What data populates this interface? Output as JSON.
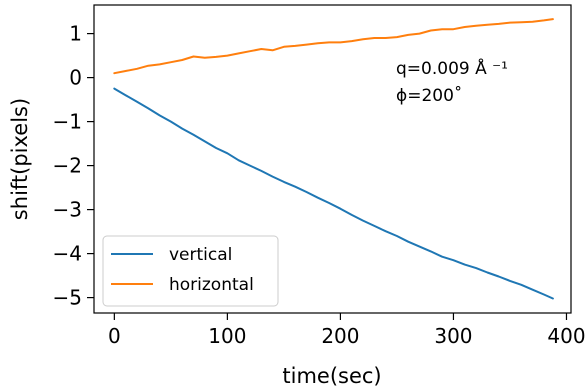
{
  "chart_data": {
    "type": "line",
    "xlabel": "time(sec)",
    "ylabel": "shift(pixels)",
    "xlim": [
      -18,
      404
    ],
    "ylim": [
      -5.35,
      1.65
    ],
    "xticks": [
      0,
      100,
      200,
      300,
      400
    ],
    "xtick_labels": [
      "0",
      "100",
      "200",
      "300",
      "400"
    ],
    "yticks": [
      1,
      0,
      -1,
      -2,
      -3,
      -4,
      -5
    ],
    "ytick_labels": [
      "1",
      "0",
      "−1",
      "−2",
      "−3",
      "−4",
      "−5"
    ],
    "grid": false,
    "legend_position": "lower-left",
    "annotation": {
      "line1": "q=0.009 Å ⁻¹",
      "line2": "ϕ=200˚"
    },
    "series": [
      {
        "name": "vertical",
        "color": "#1f77b4",
        "x": [
          0,
          10,
          20,
          30,
          40,
          50,
          60,
          70,
          80,
          90,
          100,
          110,
          120,
          130,
          140,
          150,
          160,
          170,
          180,
          190,
          200,
          210,
          220,
          230,
          240,
          250,
          260,
          270,
          280,
          290,
          300,
          310,
          320,
          330,
          340,
          350,
          360,
          370,
          380,
          388
        ],
        "y": [
          -0.25,
          -0.4,
          -0.55,
          -0.7,
          -0.86,
          -1.0,
          -1.16,
          -1.3,
          -1.45,
          -1.6,
          -1.72,
          -1.88,
          -2.0,
          -2.12,
          -2.25,
          -2.37,
          -2.48,
          -2.6,
          -2.73,
          -2.85,
          -2.98,
          -3.12,
          -3.25,
          -3.37,
          -3.49,
          -3.6,
          -3.73,
          -3.84,
          -3.95,
          -4.07,
          -4.15,
          -4.25,
          -4.33,
          -4.43,
          -4.52,
          -4.62,
          -4.71,
          -4.82,
          -4.93,
          -5.02
        ]
      },
      {
        "name": "horizontal",
        "color": "#ff7f0e",
        "x": [
          0,
          10,
          20,
          30,
          40,
          50,
          60,
          70,
          80,
          90,
          100,
          110,
          120,
          130,
          140,
          150,
          160,
          170,
          180,
          190,
          200,
          210,
          220,
          230,
          240,
          250,
          260,
          270,
          280,
          290,
          300,
          310,
          320,
          330,
          340,
          350,
          360,
          370,
          380,
          388
        ],
        "y": [
          0.1,
          0.15,
          0.2,
          0.27,
          0.3,
          0.35,
          0.4,
          0.48,
          0.45,
          0.47,
          0.5,
          0.55,
          0.6,
          0.65,
          0.62,
          0.7,
          0.72,
          0.75,
          0.78,
          0.8,
          0.8,
          0.83,
          0.87,
          0.9,
          0.9,
          0.92,
          0.97,
          1.0,
          1.07,
          1.1,
          1.1,
          1.15,
          1.18,
          1.2,
          1.22,
          1.25,
          1.26,
          1.27,
          1.3,
          1.33
        ]
      }
    ]
  }
}
